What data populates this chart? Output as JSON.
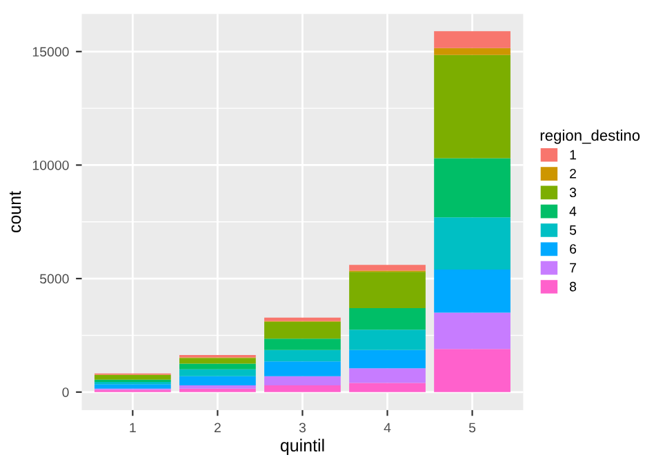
{
  "chart_data": {
    "type": "bar",
    "stacked": true,
    "xlabel": "quintil",
    "ylabel": "count",
    "legend_title": "region_destino",
    "categories": [
      "1",
      "2",
      "3",
      "4",
      "5"
    ],
    "series": [
      {
        "name": "8",
        "color": "#ff61cc",
        "values": [
          100,
          150,
          300,
          400,
          1900
        ]
      },
      {
        "name": "7",
        "color": "#c77cff",
        "values": [
          50,
          150,
          400,
          650,
          1600
        ]
      },
      {
        "name": "6",
        "color": "#00a9ff",
        "values": [
          200,
          400,
          650,
          800,
          1900
        ]
      },
      {
        "name": "5",
        "color": "#00bfc4",
        "values": [
          100,
          300,
          500,
          900,
          2300
        ]
      },
      {
        "name": "4",
        "color": "#00be67",
        "values": [
          100,
          250,
          500,
          950,
          2600
        ]
      },
      {
        "name": "3",
        "color": "#7cae00",
        "values": [
          200,
          250,
          750,
          1600,
          4550
        ]
      },
      {
        "name": "2",
        "color": "#cd9600",
        "values": [
          20,
          30,
          30,
          50,
          300
        ]
      },
      {
        "name": "1",
        "color": "#f8766d",
        "values": [
          50,
          100,
          150,
          250,
          750
        ]
      }
    ],
    "ylim": [
      -793,
      16655
    ],
    "yticks": [
      0,
      5000,
      10000,
      15000
    ],
    "grid": true,
    "legend": "right"
  }
}
